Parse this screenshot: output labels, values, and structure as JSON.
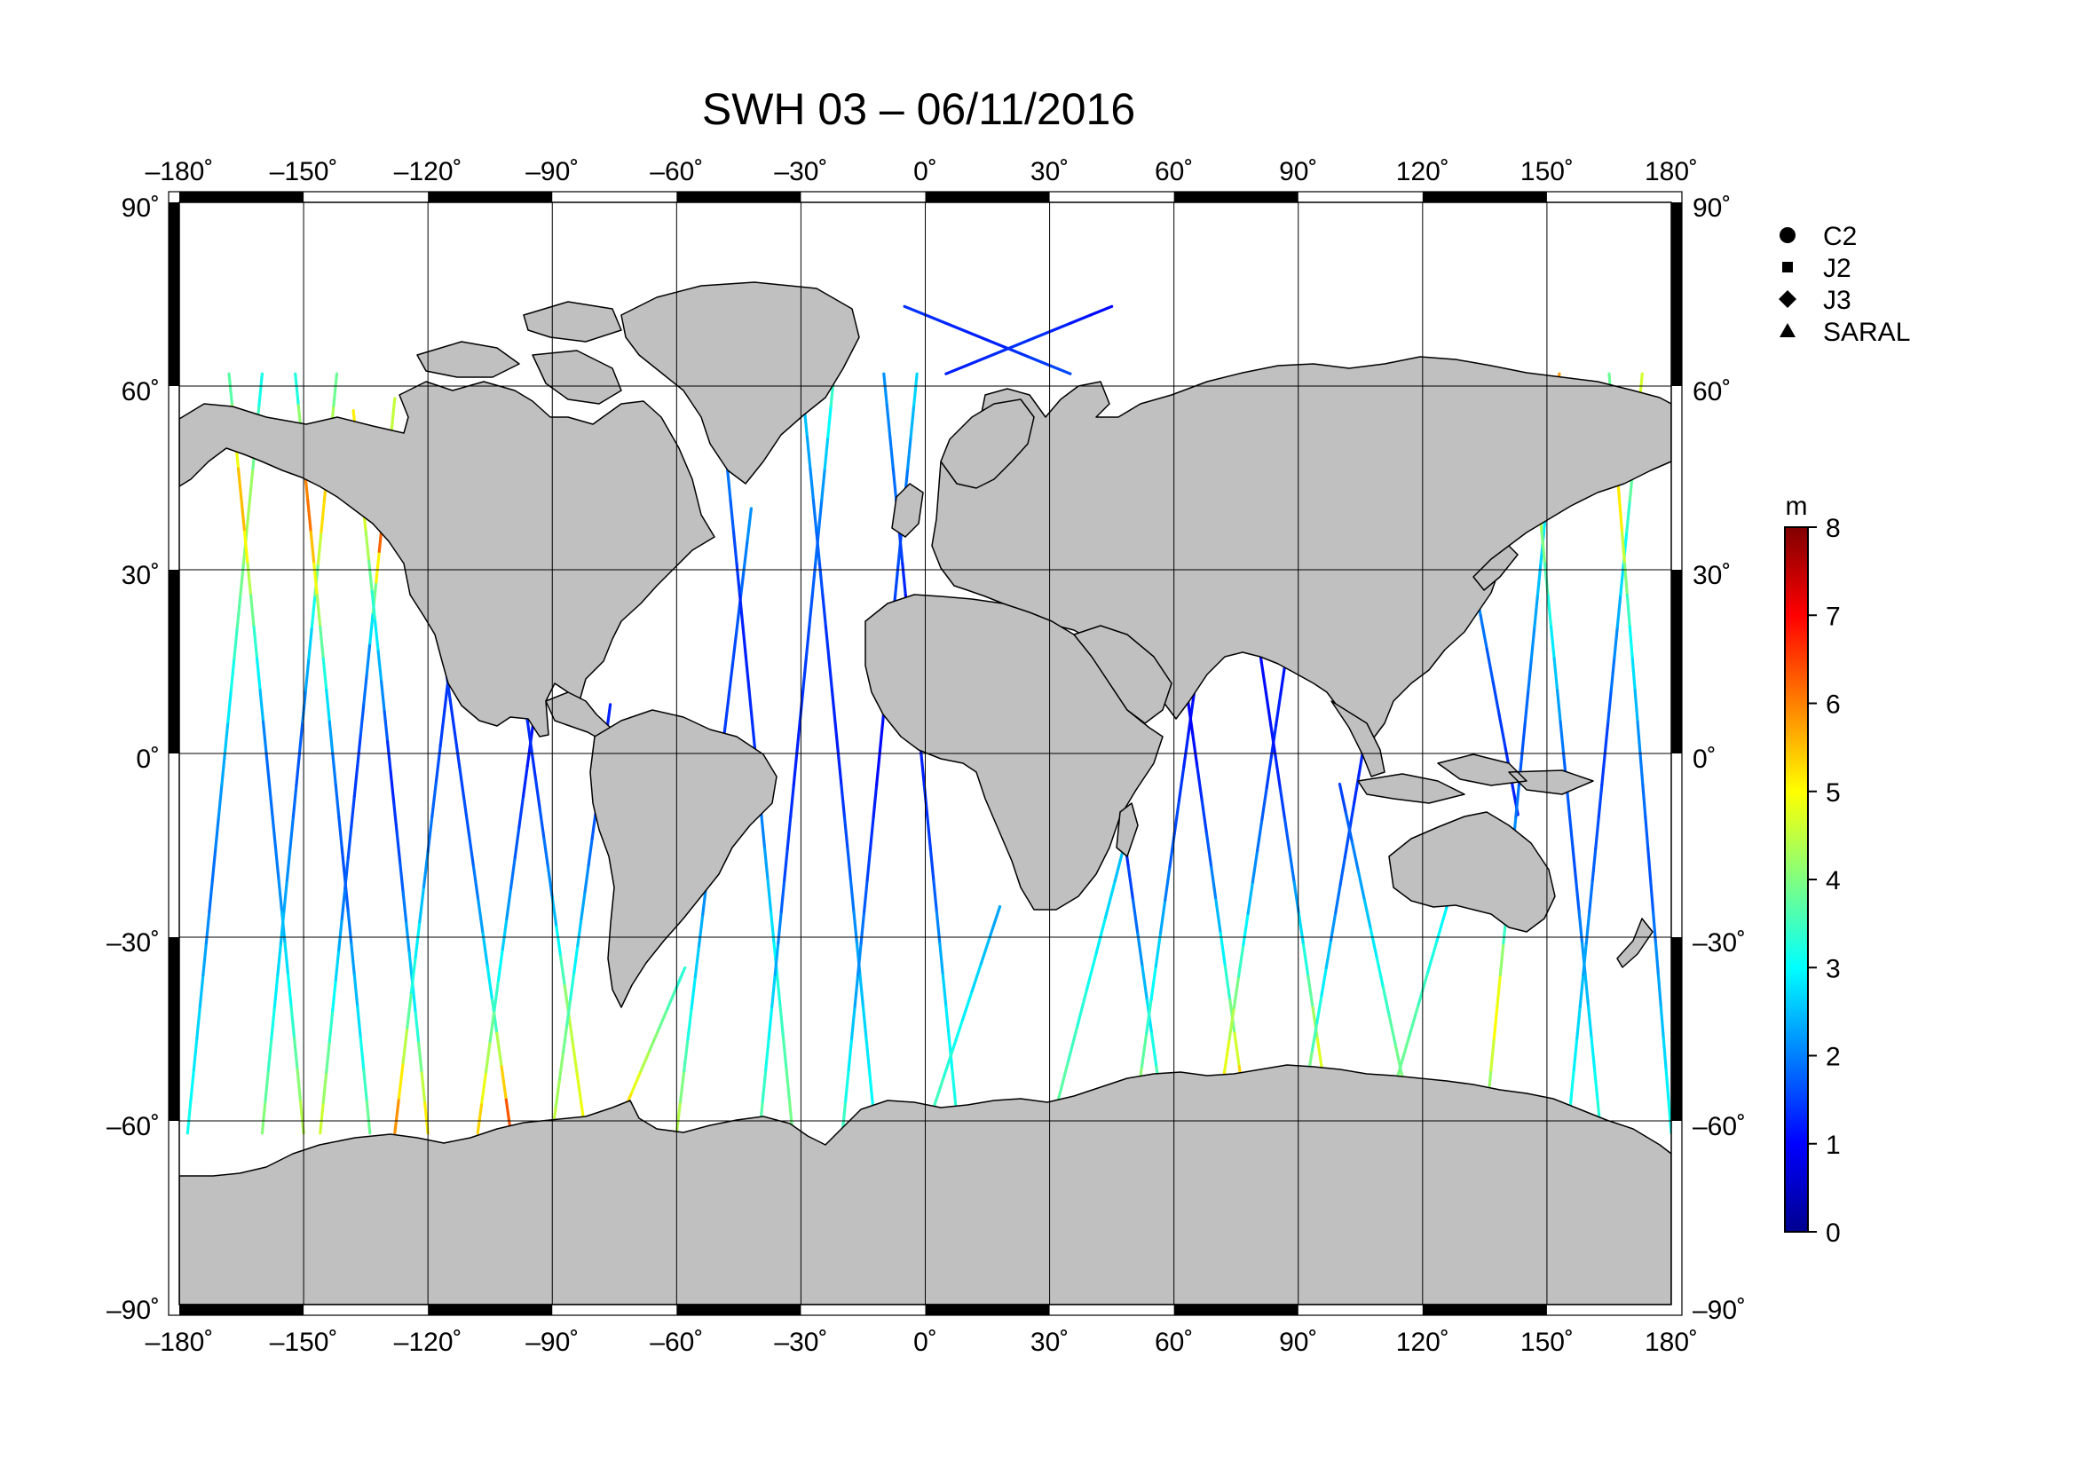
{
  "title": "SWH 03 – 06/11/2016",
  "map": {
    "projection": "plate-carree",
    "lon_range": [
      -180,
      180
    ],
    "lat_range": [
      -90,
      90
    ],
    "grid": true,
    "lon_ticks": [
      {
        "value": -180,
        "label": "–180˚"
      },
      {
        "value": -150,
        "label": "–150˚"
      },
      {
        "value": -120,
        "label": "–120˚"
      },
      {
        "value": -90,
        "label": "–90˚"
      },
      {
        "value": -60,
        "label": "–60˚"
      },
      {
        "value": -30,
        "label": "–30˚"
      },
      {
        "value": 0,
        "label": "0˚"
      },
      {
        "value": 30,
        "label": "30˚"
      },
      {
        "value": 60,
        "label": "60˚"
      },
      {
        "value": 90,
        "label": "90˚"
      },
      {
        "value": 120,
        "label": "120˚"
      },
      {
        "value": 150,
        "label": "150˚"
      },
      {
        "value": 180,
        "label": "180˚"
      }
    ],
    "lat_ticks": [
      {
        "value": 90,
        "label": "90˚"
      },
      {
        "value": 60,
        "label": "60˚"
      },
      {
        "value": 30,
        "label": "30˚"
      },
      {
        "value": 0,
        "label": "0˚"
      },
      {
        "value": -30,
        "label": "–30˚"
      },
      {
        "value": -60,
        "label": "–60˚"
      },
      {
        "value": -90,
        "label": "–90˚"
      }
    ],
    "land_color": "#c0c0c0",
    "coast_color": "#000000"
  },
  "legend": {
    "position": "top-right",
    "items": [
      {
        "label": "C2",
        "marker": "circle"
      },
      {
        "label": "J2",
        "marker": "square"
      },
      {
        "label": "J3",
        "marker": "diamond"
      },
      {
        "label": "SARAL",
        "marker": "triangle"
      }
    ]
  },
  "colorbar": {
    "unit": "m",
    "range": [
      0,
      8
    ],
    "ticks": [
      {
        "value": 0,
        "label": "0"
      },
      {
        "value": 1,
        "label": "1"
      },
      {
        "value": 2,
        "label": "2"
      },
      {
        "value": 3,
        "label": "3"
      },
      {
        "value": 4,
        "label": "4"
      },
      {
        "value": 5,
        "label": "5"
      },
      {
        "value": 6,
        "label": "6"
      },
      {
        "value": 7,
        "label": "7"
      },
      {
        "value": 8,
        "label": "8"
      }
    ],
    "colors": [
      "#00008f",
      "#0000ff",
      "#0080ff",
      "#00ffff",
      "#80ff80",
      "#ffff00",
      "#ff8000",
      "#ff0000",
      "#800000"
    ]
  },
  "chart_data": {
    "type": "scatter",
    "title": "SWH 03 – 06/11/2016",
    "xlabel": "",
    "ylabel": "",
    "xlim": [
      -180,
      180
    ],
    "ylim": [
      -90,
      90
    ],
    "value_unit": "m",
    "value_range": [
      0,
      8
    ],
    "tracks": [
      {
        "lon": [
          -178,
          -160
        ],
        "lat": [
          -62,
          62
        ],
        "swh": [
          3.2,
          2.6,
          1.8,
          2.4,
          3.6,
          4.4,
          3.0
        ]
      },
      {
        "lon": [
          -168,
          -150
        ],
        "lat": [
          62,
          -62
        ],
        "swh": [
          3.4,
          5.8,
          3.6,
          1.8,
          2.0,
          3.2,
          4.6
        ]
      },
      {
        "lon": [
          -160,
          -142
        ],
        "lat": [
          -62,
          62
        ],
        "swh": [
          4.2,
          3.0,
          2.2,
          1.6,
          2.8,
          5.6,
          3.6
        ]
      },
      {
        "lon": [
          -152,
          -134
        ],
        "lat": [
          62,
          -62
        ],
        "swh": [
          2.8,
          6.4,
          4.0,
          2.0,
          1.6,
          2.6,
          4.0
        ]
      },
      {
        "lon": [
          -146,
          -128
        ],
        "lat": [
          -62,
          58
        ],
        "swh": [
          4.8,
          3.2,
          1.8,
          1.4,
          2.2,
          6.8,
          4.2
        ]
      },
      {
        "lon": [
          -138,
          -120
        ],
        "lat": [
          56,
          -62
        ],
        "swh": [
          5.2,
          4.6,
          2.6,
          1.2,
          1.8,
          3.0,
          5.4
        ]
      },
      {
        "lon": [
          -128,
          -112
        ],
        "lat": [
          -62,
          30
        ],
        "swh": [
          6.2,
          3.4,
          2.0,
          1.4,
          1.6
        ]
      },
      {
        "lon": [
          -118,
          -100
        ],
        "lat": [
          25,
          -62
        ],
        "swh": [
          1.6,
          1.4,
          1.8,
          3.0,
          6.8
        ]
      },
      {
        "lon": [
          -108,
          -92
        ],
        "lat": [
          -62,
          18
        ],
        "swh": [
          5.6,
          3.6,
          2.0,
          1.2,
          1.0
        ]
      },
      {
        "lon": [
          -98,
          -82
        ],
        "lat": [
          15,
          -62
        ],
        "swh": [
          1.2,
          1.4,
          2.2,
          4.4,
          5.0
        ]
      },
      {
        "lon": [
          -90,
          -76
        ],
        "lat": [
          -62,
          8
        ],
        "swh": [
          4.6,
          3.8,
          2.4,
          1.6,
          1.2
        ]
      },
      {
        "lon": [
          -75,
          -58
        ],
        "lat": [
          -62,
          -35
        ],
        "swh": [
          5.8,
          4.2,
          3.2
        ]
      },
      {
        "lon": [
          -60,
          -42
        ],
        "lat": [
          -62,
          40
        ],
        "swh": [
          4.6,
          3.0,
          2.0,
          1.4,
          1.6,
          2.2
        ]
      },
      {
        "lon": [
          -50,
          -32
        ],
        "lat": [
          62,
          -62
        ],
        "swh": [
          2.6,
          1.8,
          1.2,
          1.4,
          2.4,
          3.4,
          4.0
        ]
      },
      {
        "lon": [
          -40,
          -22
        ],
        "lat": [
          -62,
          62
        ],
        "swh": [
          3.8,
          2.8,
          1.6,
          1.2,
          1.6,
          2.0,
          3.6
        ]
      },
      {
        "lon": [
          -30,
          -12
        ],
        "lat": [
          62,
          -62
        ],
        "swh": [
          2.8,
          2.0,
          1.4,
          1.2,
          1.8,
          2.6,
          3.2
        ]
      },
      {
        "lon": [
          -20,
          -2
        ],
        "lat": [
          -62,
          62
        ],
        "swh": [
          3.6,
          2.4,
          1.6,
          1.0,
          1.4,
          1.8,
          2.8
        ]
      },
      {
        "lon": [
          -10,
          8
        ],
        "lat": [
          62,
          -62
        ],
        "swh": [
          2.2,
          1.8,
          1.0,
          1.2,
          1.6,
          2.8,
          3.4
        ]
      },
      {
        "lon": [
          0,
          18
        ],
        "lat": [
          -62,
          -25
        ],
        "swh": [
          3.8,
          3.0,
          2.2
        ]
      },
      {
        "lon": [
          30,
          48
        ],
        "lat": [
          -62,
          -15
        ],
        "swh": [
          4.0,
          3.2,
          2.4
        ]
      },
      {
        "lon": [
          40,
          58
        ],
        "lat": [
          25,
          -62
        ],
        "swh": [
          1.0,
          0.8,
          1.4,
          2.6,
          4.2
        ]
      },
      {
        "lon": [
          50,
          68
        ],
        "lat": [
          -62,
          25
        ],
        "swh": [
          4.6,
          3.2,
          1.8,
          1.2,
          0.8
        ]
      },
      {
        "lon": [
          60,
          78
        ],
        "lat": [
          25,
          -62
        ],
        "swh": [
          0.8,
          1.0,
          1.8,
          3.6,
          6.4
        ]
      },
      {
        "lon": [
          70,
          88
        ],
        "lat": [
          -62,
          20
        ],
        "swh": [
          5.8,
          4.2,
          2.2,
          1.4,
          1.0
        ]
      },
      {
        "lon": [
          80,
          98
        ],
        "lat": [
          20,
          -62
        ],
        "swh": [
          1.0,
          1.2,
          2.0,
          4.0,
          6.0
        ]
      },
      {
        "lon": [
          90,
          108
        ],
        "lat": [
          -62,
          10
        ],
        "swh": [
          4.8,
          3.4,
          2.0,
          1.4,
          1.0
        ]
      },
      {
        "lon": [
          100,
          118
        ],
        "lat": [
          -5,
          -62
        ],
        "swh": [
          1.4,
          2.4,
          3.6,
          4.4
        ]
      },
      {
        "lon": [
          110,
          128
        ],
        "lat": [
          -62,
          -20
        ],
        "swh": [
          4.2,
          3.6,
          2.6
        ]
      },
      {
        "lon": [
          125,
          143
        ],
        "lat": [
          55,
          -10
        ],
        "swh": [
          3.2,
          2.4,
          1.6,
          1.2
        ]
      },
      {
        "lon": [
          135,
          153
        ],
        "lat": [
          -62,
          62
        ],
        "swh": [
          3.6,
          5.2,
          2.4,
          1.6,
          2.2,
          3.0,
          6.2
        ]
      },
      {
        "lon": [
          145,
          163
        ],
        "lat": [
          62,
          -62
        ],
        "swh": [
          2.8,
          4.6,
          3.0,
          1.8,
          1.6,
          2.6,
          3.4
        ]
      },
      {
        "lon": [
          155,
          173
        ],
        "lat": [
          -62,
          62
        ],
        "swh": [
          3.4,
          2.6,
          1.8,
          1.4,
          2.2,
          3.6,
          4.8
        ]
      },
      {
        "lon": [
          165,
          180
        ],
        "lat": [
          62,
          -62
        ],
        "swh": [
          3.6,
          5.4,
          3.2,
          2.0,
          1.6,
          2.4,
          3.2
        ]
      },
      {
        "lon": [
          -5,
          35
        ],
        "lat": [
          73,
          62
        ],
        "swh": [
          1.4,
          1.2,
          1.6
        ]
      },
      {
        "lon": [
          5,
          45
        ],
        "lat": [
          62,
          73
        ],
        "swh": [
          1.2,
          1.4,
          1.0
        ]
      }
    ]
  }
}
